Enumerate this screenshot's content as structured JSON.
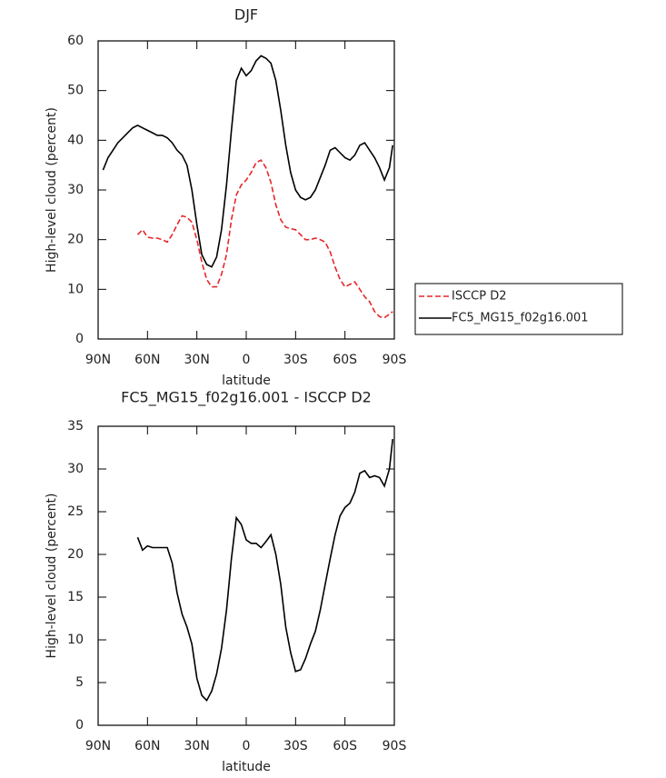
{
  "chart_data": [
    {
      "type": "line",
      "title": "DJF",
      "xlabel": "latitude",
      "ylabel": "High-level cloud (percent)",
      "x": [
        87,
        84,
        81,
        78,
        75,
        72,
        69,
        66,
        63,
        60,
        57,
        54,
        51,
        48,
        45,
        42,
        39,
        36,
        33,
        30,
        27,
        24,
        21,
        18,
        15,
        12,
        9,
        6,
        3,
        0,
        -3,
        -6,
        -9,
        -12,
        -15,
        -18,
        -21,
        -24,
        -27,
        -30,
        -33,
        -36,
        -39,
        -42,
        -45,
        -48,
        -51,
        -54,
        -57,
        -60,
        -63,
        -66,
        -69,
        -72,
        -75,
        -78,
        -81,
        -84,
        -87,
        -89
      ],
      "xlim": [
        90,
        -90
      ],
      "xticks": [
        {
          "value": 90,
          "label": "90N"
        },
        {
          "value": 60,
          "label": "60N"
        },
        {
          "value": 30,
          "label": "30N"
        },
        0,
        {
          "value": -30,
          "label": "30S"
        },
        {
          "value": -60,
          "label": "60S"
        },
        {
          "value": -90,
          "label": "90S"
        }
      ],
      "ylim": [
        0,
        60
      ],
      "yticks": [
        0,
        10,
        20,
        30,
        40,
        50,
        60
      ],
      "legend": "right",
      "series": [
        {
          "name": "ISCCP D2",
          "color": "#e8262a",
          "linestyle": "dashed",
          "values": [
            null,
            null,
            null,
            null,
            null,
            null,
            null,
            21,
            22,
            20.5,
            20.3,
            20.3,
            20,
            19.5,
            21,
            23,
            24.8,
            24.5,
            23.5,
            20,
            15.5,
            12,
            10.5,
            10.5,
            13,
            17,
            24,
            29,
            31,
            32,
            33.5,
            35.5,
            36,
            34.5,
            31.5,
            27,
            24,
            22.5,
            22.2,
            22,
            21,
            20,
            20,
            20.3,
            20,
            19.5,
            17.5,
            14.5,
            12,
            10.5,
            11,
            11.5,
            10,
            8.5,
            7.5,
            5.5,
            4.5,
            4.3,
            5,
            5.5
          ]
        },
        {
          "name": "FC5_MG15_f02g16.001",
          "color": "#000000",
          "linestyle": "solid",
          "values": [
            34,
            36.5,
            38,
            39.5,
            40.5,
            41.5,
            42.5,
            43,
            42.5,
            42,
            41.5,
            41,
            41,
            40.5,
            39.5,
            38,
            37,
            35,
            30,
            23,
            17,
            15,
            14.5,
            16.5,
            22,
            31,
            42,
            52,
            54.5,
            53,
            54,
            56,
            57,
            56.5,
            55.5,
            52,
            46,
            39,
            33.5,
            30,
            28.5,
            28,
            28.5,
            30,
            32.5,
            35,
            38,
            38.5,
            37.5,
            36.5,
            36,
            37,
            39,
            39.5,
            38,
            36.5,
            34.5,
            32,
            34.5,
            39
          ]
        }
      ]
    },
    {
      "type": "line",
      "title": "FC5_MG15_f02g16.001 - ISCCP D2",
      "xlabel": "latitude",
      "ylabel": "High-level cloud (percent)",
      "x": [
        66,
        63,
        60,
        57,
        54,
        51,
        48,
        45,
        42,
        39,
        36,
        33,
        30,
        27,
        24,
        21,
        18,
        15,
        12,
        9,
        6,
        3,
        0,
        -3,
        -6,
        -9,
        -12,
        -15,
        -18,
        -21,
        -24,
        -27,
        -30,
        -33,
        -36,
        -39,
        -42,
        -45,
        -48,
        -51,
        -54,
        -57,
        -60,
        -63,
        -66,
        -69,
        -72,
        -75,
        -78,
        -81,
        -84,
        -87,
        -89
      ],
      "xlim": [
        90,
        -90
      ],
      "xticks": [
        {
          "value": 90,
          "label": "90N"
        },
        {
          "value": 60,
          "label": "60N"
        },
        {
          "value": 30,
          "label": "30N"
        },
        0,
        {
          "value": -30,
          "label": "30S"
        },
        {
          "value": -60,
          "label": "60S"
        },
        {
          "value": -90,
          "label": "90S"
        }
      ],
      "ylim": [
        0,
        35
      ],
      "yticks": [
        0,
        5,
        10,
        15,
        20,
        25,
        30,
        35
      ],
      "color": "#000000",
      "values": [
        22,
        20.5,
        21,
        20.8,
        20.8,
        20.8,
        20.8,
        19,
        15.5,
        13,
        11.5,
        9.5,
        5.5,
        3.5,
        2.9,
        4,
        6,
        9,
        13.5,
        19.5,
        24.3,
        23.5,
        21.7,
        21.3,
        21.3,
        20.8,
        21.5,
        22.3,
        20,
        16.5,
        11.5,
        8.5,
        6.3,
        6.5,
        7.8,
        9.5,
        11,
        13.5,
        16.5,
        19.5,
        22.3,
        24.5,
        25.5,
        26,
        27.3,
        29.5,
        29.8,
        29,
        29.2,
        29,
        28,
        30,
        33.5
      ]
    }
  ]
}
